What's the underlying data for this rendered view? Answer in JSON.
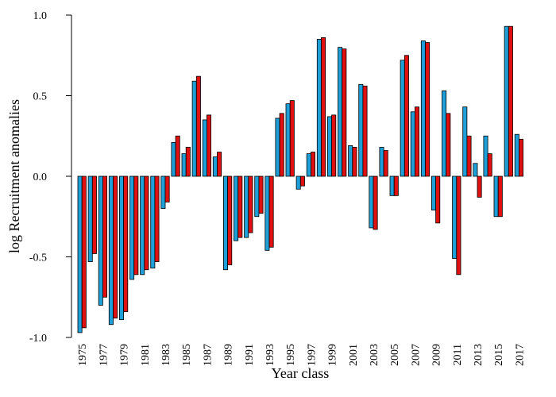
{
  "chart_data": {
    "type": "bar",
    "title": "",
    "xlabel": "Year class",
    "ylabel": "log Recruitment anomalies",
    "ylim": [
      -1.0,
      1.0
    ],
    "yticks": [
      "-1.0",
      "-0.5",
      "0.0",
      "0.5",
      "1.0"
    ],
    "ytick_values": [
      -1.0,
      -0.5,
      0.0,
      0.5,
      1.0
    ],
    "grid": false,
    "legend": "none",
    "categories": [
      "1975",
      "1976",
      "1977",
      "1978",
      "1979",
      "1980",
      "1981",
      "1982",
      "1983",
      "1984",
      "1985",
      "1986",
      "1987",
      "1988",
      "1989",
      "1990",
      "1991",
      "1992",
      "1993",
      "1994",
      "1995",
      "1996",
      "1997",
      "1998",
      "1999",
      "2000",
      "2001",
      "2002",
      "2003",
      "2004",
      "2005",
      "2006",
      "2007",
      "2008",
      "2009",
      "2010",
      "2011",
      "2012",
      "2013",
      "2014",
      "2015",
      "2016",
      "2017"
    ],
    "xtick_labels": [
      "1975",
      "1977",
      "1979",
      "1981",
      "1983",
      "1985",
      "1987",
      "1989",
      "1991",
      "1993",
      "1995",
      "1997",
      "1999",
      "2001",
      "2003",
      "2005",
      "2007",
      "2009",
      "2011",
      "2013",
      "2015",
      "2017"
    ],
    "series": [
      {
        "color": "#1e9fd8",
        "values": [
          -0.97,
          -0.53,
          -0.8,
          -0.92,
          -0.89,
          -0.64,
          -0.61,
          -0.57,
          -0.2,
          0.21,
          0.14,
          0.59,
          0.35,
          0.12,
          -0.58,
          -0.4,
          -0.38,
          -0.25,
          -0.46,
          0.36,
          0.45,
          -0.08,
          0.14,
          0.85,
          0.37,
          0.8,
          0.19,
          0.57,
          -0.32,
          0.18,
          -0.12,
          0.72,
          0.4,
          0.84,
          -0.21,
          0.53,
          -0.51,
          0.43,
          0.08,
          0.25,
          -0.25,
          0.93,
          0.26
        ]
      },
      {
        "color": "#e01010",
        "values": [
          -0.94,
          -0.48,
          -0.75,
          -0.88,
          -0.84,
          -0.61,
          -0.58,
          -0.53,
          -0.16,
          0.25,
          0.18,
          0.62,
          0.38,
          0.15,
          -0.55,
          -0.38,
          -0.35,
          -0.23,
          -0.44,
          0.39,
          0.47,
          -0.06,
          0.15,
          0.86,
          0.38,
          0.79,
          0.18,
          0.56,
          -0.33,
          0.16,
          -0.12,
          0.75,
          0.43,
          0.83,
          -0.29,
          0.39,
          -0.61,
          0.25,
          -0.13,
          0.14,
          -0.25,
          0.93,
          0.23
        ]
      }
    ]
  }
}
